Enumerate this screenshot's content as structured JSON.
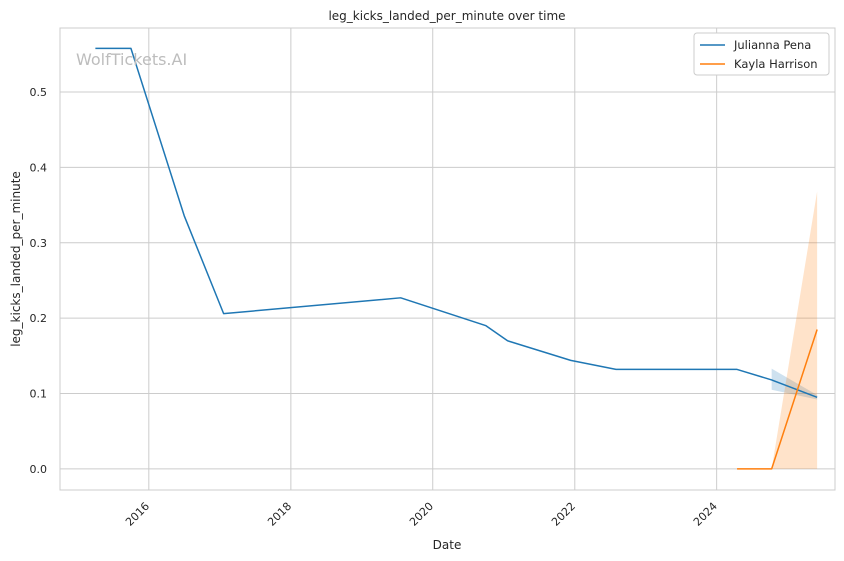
{
  "chart_data": {
    "type": "line",
    "title": "leg_kicks_landed_per_minute over time",
    "xlabel": "Date",
    "ylabel": "leg_kicks_landed_per_minute",
    "watermark": "WolfTickets.AI",
    "xlim": [
      "2014-10-01",
      "2025-09-01"
    ],
    "ylim": [
      -0.028,
      0.585
    ],
    "x_ticks": [
      "2016",
      "2018",
      "2020",
      "2022",
      "2024"
    ],
    "y_ticks": [
      "0.0",
      "0.1",
      "0.2",
      "0.3",
      "0.4",
      "0.5"
    ],
    "grid": true,
    "legend_position": "top-right",
    "series": [
      {
        "name": "Julianna Pena",
        "color": "#1f77b4",
        "x": [
          "2015-04-01",
          "2015-10-01",
          "2016-07-01",
          "2017-01-20",
          "2019-07-20",
          "2020-10-01",
          "2021-01-20",
          "2021-12-11",
          "2022-08-01",
          "2024-04-15",
          "2024-10-10",
          "2025-06-01"
        ],
        "y": [
          0.558,
          0.558,
          0.336,
          0.206,
          0.227,
          0.19,
          0.17,
          0.144,
          0.132,
          0.132,
          0.118,
          0.095
        ],
        "band": {
          "x": [
            "2024-10-10",
            "2025-06-01"
          ],
          "lower": [
            0.105,
            0.092
          ],
          "upper": [
            0.133,
            0.098
          ]
        }
      },
      {
        "name": "Kayla Harrison",
        "color": "#ff7f0e",
        "x": [
          "2024-04-15",
          "2024-10-10",
          "2025-06-01"
        ],
        "y": [
          0.0,
          0.0,
          0.185
        ],
        "band": {
          "x": [
            "2024-10-10",
            "2025-06-01"
          ],
          "lower": [
            0.0,
            0.0
          ],
          "upper": [
            0.0,
            0.368
          ]
        }
      }
    ]
  }
}
